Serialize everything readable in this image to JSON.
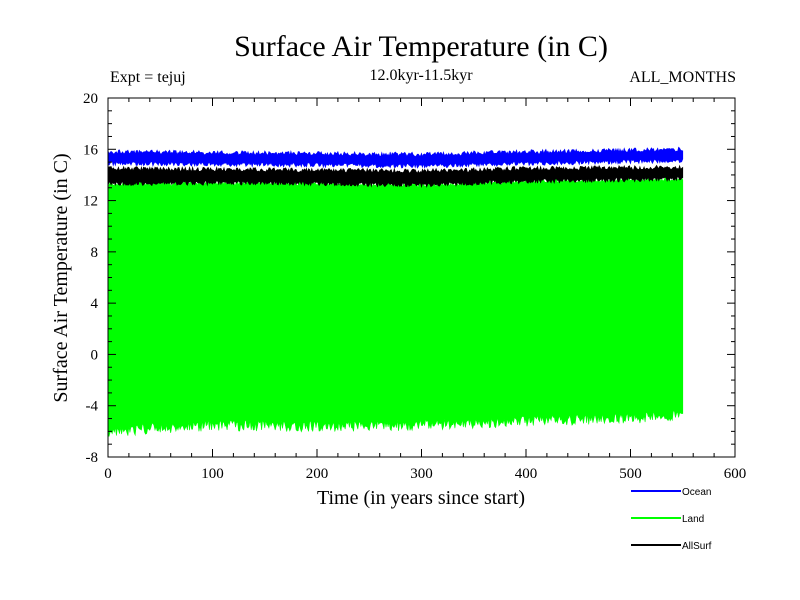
{
  "chart_data": {
    "type": "area",
    "title": "Surface Air Temperature (in C)",
    "subtitle_left": "Expt = tejuj",
    "subtitle_center": "12.0kyr-11.5kyr",
    "subtitle_right": "ALL_MONTHS",
    "xlabel": "Time (in years since start)",
    "ylabel": "Surface Air Temperature (in C)",
    "xlim": [
      0,
      600
    ],
    "ylim": [
      -8,
      20
    ],
    "x_ticks": [
      "0",
      "100",
      "200",
      "300",
      "400",
      "500",
      "600"
    ],
    "y_ticks": [
      "20",
      "16",
      "12",
      "8",
      "4",
      "0",
      "-4",
      "-8"
    ],
    "x_end": 550,
    "series": [
      {
        "name": "Ocean",
        "color": "#0000ff",
        "min": [
          [
            0,
            14.9
          ],
          [
            150,
            14.8
          ],
          [
            300,
            14.7
          ],
          [
            400,
            14.9
          ],
          [
            550,
            15.1
          ]
        ],
        "max": [
          [
            0,
            15.8
          ],
          [
            150,
            15.7
          ],
          [
            300,
            15.6
          ],
          [
            400,
            15.8
          ],
          [
            550,
            16.0
          ]
        ]
      },
      {
        "name": "Land",
        "color": "#00ff00",
        "min": [
          [
            0,
            -6.0
          ],
          [
            100,
            -5.5
          ],
          [
            200,
            -5.6
          ],
          [
            300,
            -5.5
          ],
          [
            400,
            -5.2
          ],
          [
            550,
            -4.8
          ]
        ],
        "max": [
          [
            0,
            13.3
          ],
          [
            150,
            13.4
          ],
          [
            300,
            13.2
          ],
          [
            400,
            13.5
          ],
          [
            550,
            13.7
          ]
        ]
      },
      {
        "name": "AllSurf",
        "color": "#000000",
        "min": [
          [
            0,
            13.3
          ],
          [
            150,
            13.4
          ],
          [
            300,
            13.2
          ],
          [
            400,
            13.5
          ],
          [
            550,
            13.7
          ]
        ],
        "max": [
          [
            0,
            14.5
          ],
          [
            150,
            14.4
          ],
          [
            300,
            14.3
          ],
          [
            400,
            14.5
          ],
          [
            550,
            14.6
          ]
        ]
      }
    ]
  }
}
